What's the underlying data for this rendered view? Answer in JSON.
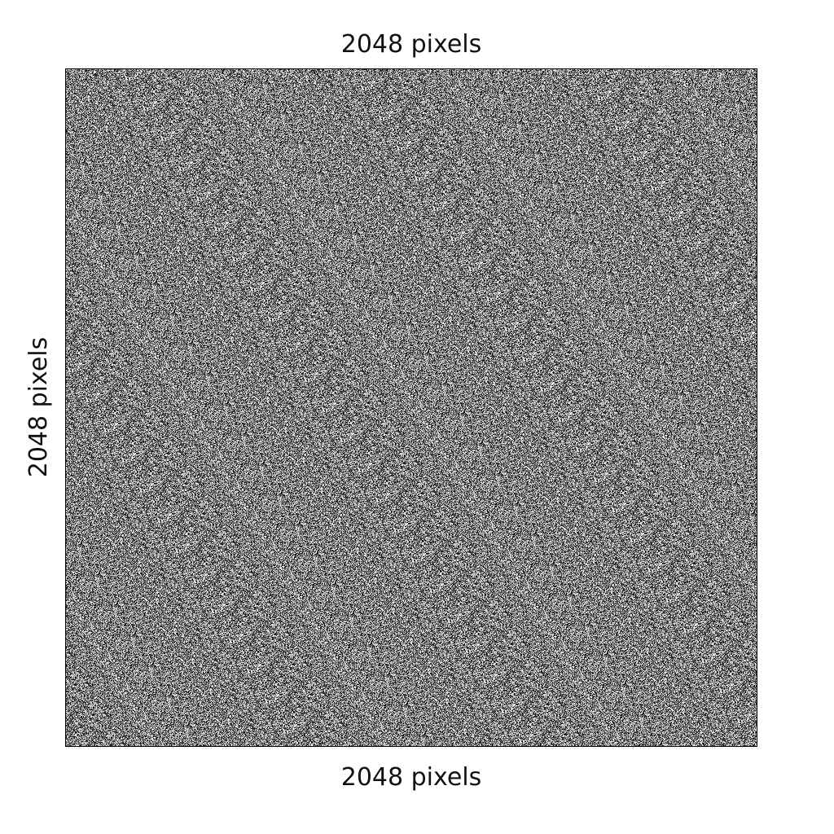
{
  "labels": {
    "top": "2048 pixels",
    "bottom": "2048 pixels",
    "left": "2048 pixels"
  },
  "image": {
    "description": "random grayscale noise",
    "background_color": "#808080",
    "border_color": "#000000"
  }
}
